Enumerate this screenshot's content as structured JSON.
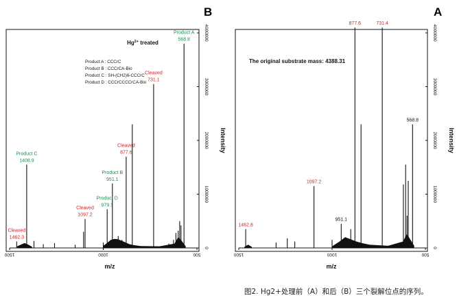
{
  "caption": "图2. Hg2+处理前（A）和后（B）三个裂解位点的序列。",
  "colors": {
    "red": "#d22020",
    "green": "#1f8a4c",
    "black": "#111111"
  },
  "chart_data": [
    {
      "type": "bar",
      "panel": "B",
      "title": "Hg2+ treated",
      "xlabel": "m/z",
      "ylabel": "Intensity",
      "xlim": [
        1500,
        500
      ],
      "ylim": [
        0,
        4000000
      ],
      "x_ticks": [
        "1500",
        "1000",
        "500"
      ],
      "y_ticks": [
        "0",
        "1000000",
        "2000000",
        "3000000",
        "4000000"
      ],
      "legend": [
        "Product A : CCCrC",
        "Product B : CCCrCA-Bio",
        "Product C : SH-(CH2)6-CCCrC",
        "Product D : CCCrCCCCrCA-Bio"
      ],
      "annotations": [
        {
          "lines": [
            "Product A",
            "568.8"
          ],
          "x": 568.8,
          "y": 3800000,
          "color": "green"
        },
        {
          "lines": [
            "Cleaved",
            "731.1"
          ],
          "x": 731.1,
          "y": 3050000,
          "color": "red"
        },
        {
          "lines": [
            "Cleaved",
            "877.6"
          ],
          "x": 877.6,
          "y": 1700000,
          "color": "red"
        },
        {
          "lines": [
            "Product B",
            "951.1"
          ],
          "x": 951.1,
          "y": 1200000,
          "color": "green"
        },
        {
          "lines": [
            "Product D",
            "979.1"
          ],
          "x": 979.1,
          "y": 720000,
          "color": "green"
        },
        {
          "lines": [
            "Cleaved",
            "1097.2"
          ],
          "x": 1097.2,
          "y": 540000,
          "color": "red"
        },
        {
          "lines": [
            "Product C",
            "1408.9"
          ],
          "x": 1408.9,
          "y": 1550000,
          "color": "green"
        },
        {
          "lines": [
            "Cleaved",
            "1462.3"
          ],
          "x": 1462.3,
          "y": 120000,
          "color": "red"
        }
      ],
      "peaks": [
        {
          "x": 568.8,
          "y": 3800000
        },
        {
          "x": 585,
          "y": 420000
        },
        {
          "x": 592,
          "y": 500000
        },
        {
          "x": 600,
          "y": 320000
        },
        {
          "x": 612,
          "y": 280000
        },
        {
          "x": 625,
          "y": 150000
        },
        {
          "x": 650,
          "y": 80000
        },
        {
          "x": 731.1,
          "y": 3050000
        },
        {
          "x": 845,
          "y": 2300000
        },
        {
          "x": 877.6,
          "y": 1700000
        },
        {
          "x": 900,
          "y": 150000
        },
        {
          "x": 920,
          "y": 220000
        },
        {
          "x": 951.1,
          "y": 1200000
        },
        {
          "x": 979.1,
          "y": 720000
        },
        {
          "x": 1000,
          "y": 100000
        },
        {
          "x": 1097.2,
          "y": 540000
        },
        {
          "x": 1105,
          "y": 300000
        },
        {
          "x": 1150,
          "y": 60000
        },
        {
          "x": 1260,
          "y": 90000
        },
        {
          "x": 1320,
          "y": 70000
        },
        {
          "x": 1370,
          "y": 130000
        },
        {
          "x": 1408.9,
          "y": 1550000
        },
        {
          "x": 1462.3,
          "y": 120000
        }
      ],
      "baseline": [
        [
          1000,
          40000
        ],
        [
          980,
          90000
        ],
        [
          960,
          150000
        ],
        [
          940,
          170000
        ],
        [
          920,
          160000
        ],
        [
          900,
          130000
        ],
        [
          880,
          100000
        ],
        [
          860,
          70000
        ],
        [
          840,
          55000
        ],
        [
          800,
          35000
        ],
        [
          700,
          30000
        ],
        [
          620,
          80000
        ],
        [
          600,
          200000
        ],
        [
          585,
          150000
        ],
        [
          560,
          30000
        ],
        [
          1460,
          30000
        ],
        [
          1420,
          90000
        ],
        [
          1400,
          60000
        ],
        [
          1380,
          20000
        ]
      ]
    },
    {
      "type": "bar",
      "panel": "A",
      "title": "The original substrate mass: 4388.31",
      "xlabel": "m/z",
      "ylabel": "Intensity",
      "xlim": [
        1500,
        500
      ],
      "ylim": [
        0,
        4000000
      ],
      "x_ticks": [
        "1500",
        "1000",
        "500"
      ],
      "y_ticks": [
        "0",
        "1000000",
        "2000000",
        "3000000",
        "4000000"
      ],
      "annotations": [
        {
          "lines": [
            "877.6"
          ],
          "x": 877.6,
          "y": 4100000,
          "color": "red"
        },
        {
          "lines": [
            "731.4"
          ],
          "x": 731.4,
          "y": 4100000,
          "color": "red"
        },
        {
          "lines": [
            "568.8"
          ],
          "x": 568.8,
          "y": 2300000,
          "color": "black"
        },
        {
          "lines": [
            "1097.2"
          ],
          "x": 1097.2,
          "y": 1150000,
          "color": "red"
        },
        {
          "lines": [
            "951.1"
          ],
          "x": 951.1,
          "y": 450000,
          "color": "black"
        },
        {
          "lines": [
            "1462.8"
          ],
          "x": 1462.8,
          "y": 350000,
          "color": "red"
        }
      ],
      "peaks": [
        {
          "x": 568.8,
          "y": 2300000
        },
        {
          "x": 592,
          "y": 1250000
        },
        {
          "x": 598,
          "y": 600000
        },
        {
          "x": 606,
          "y": 1550000
        },
        {
          "x": 618,
          "y": 1180000
        },
        {
          "x": 731.4,
          "y": 4100000
        },
        {
          "x": 845,
          "y": 2300000
        },
        {
          "x": 877.6,
          "y": 4100000
        },
        {
          "x": 900,
          "y": 350000
        },
        {
          "x": 951.1,
          "y": 450000
        },
        {
          "x": 1000,
          "y": 150000
        },
        {
          "x": 1097.2,
          "y": 1150000
        },
        {
          "x": 1200,
          "y": 120000
        },
        {
          "x": 1240,
          "y": 180000
        },
        {
          "x": 1300,
          "y": 100000
        },
        {
          "x": 1462.8,
          "y": 350000
        }
      ],
      "baseline": [
        [
          1000,
          30000
        ],
        [
          960,
          120000
        ],
        [
          930,
          200000
        ],
        [
          900,
          160000
        ],
        [
          870,
          120000
        ],
        [
          840,
          90000
        ],
        [
          800,
          60000
        ],
        [
          700,
          40000
        ],
        [
          620,
          120000
        ],
        [
          600,
          260000
        ],
        [
          585,
          180000
        ],
        [
          560,
          40000
        ],
        [
          1470,
          20000
        ],
        [
          1450,
          60000
        ],
        [
          1430,
          20000
        ]
      ]
    }
  ]
}
